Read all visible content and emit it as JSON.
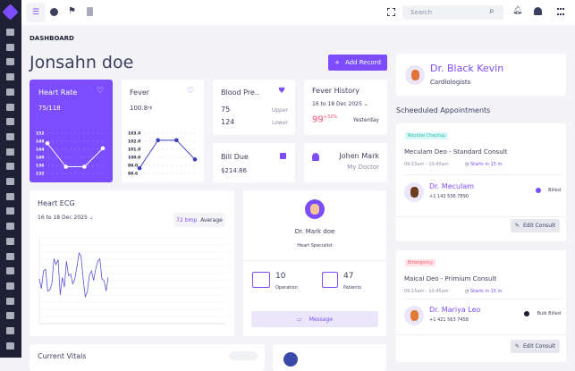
{
  "colors": {
    "accent": "#7c4dff",
    "sidebar": "#1e2033",
    "danger": "#ff4d6d"
  },
  "topbar": {
    "search_placeholder": "Search",
    "icons": [
      "menu-icon",
      "chat-icon",
      "flag-icon",
      "clipboard-icon",
      "fullscreen-icon",
      "search-icon",
      "bell-icon",
      "user-icon",
      "settings-icon"
    ]
  },
  "page": {
    "breadcrumb": "DASHBOARD",
    "title": "Jonsahn doe",
    "add_record": "Add Record"
  },
  "heart_rate": {
    "title": "Heart Rate",
    "value": "75/118",
    "chart_data": {
      "type": "line",
      "y_ticks": [
        152,
        148,
        144,
        140,
        136,
        132
      ],
      "values": [
        148,
        134,
        134,
        145
      ]
    }
  },
  "fever": {
    "title": "Fever",
    "value": "100.8",
    "unit": "°F",
    "chart_data": {
      "type": "line",
      "y_ticks": [
        "103.0",
        "102.0",
        "101.0",
        "100.0",
        "99.0",
        "98.6"
      ],
      "values": [
        99.2,
        102.4,
        102.4,
        100.2
      ]
    }
  },
  "blood_pressure": {
    "title": "Blood Pre..",
    "upper": "75",
    "upper_label": "Upper",
    "lower": "124",
    "lower_label": "Lower"
  },
  "fever_history": {
    "title": "Fever History",
    "range": "16 to 18 Dec 2025",
    "value": "99",
    "change": "+32%",
    "when": "Yesterday"
  },
  "bill": {
    "title": "Bill Due",
    "amount": "$214.86"
  },
  "my_doctor": {
    "name": "Johen Mark",
    "label": "My Doctor"
  },
  "ecg": {
    "title": "Heart ECG",
    "range": "16 to 18 Dec 2025",
    "bpm": "72 bmp",
    "bpm_label": "Average",
    "chart_data": {
      "type": "line",
      "values": [
        50,
        38,
        60,
        62,
        35,
        36,
        44,
        75,
        68,
        74,
        30,
        52,
        40,
        72,
        54,
        56,
        44,
        50,
        65,
        82,
        78,
        50,
        28,
        34,
        55,
        60,
        48,
        62,
        72,
        75,
        50,
        48,
        35,
        52
      ]
    }
  },
  "doctor_card": {
    "name": "Dr. Mark doe",
    "specialty": "Heart Specialist",
    "operations": "10",
    "operations_label": "Operation",
    "patients": "47",
    "patients_label": "Patients",
    "message": "Message"
  },
  "bottom": {
    "vitals_title": "Current Vitals"
  },
  "profile": {
    "name": "Dr. Black Kevin",
    "role": "Cardiologists"
  },
  "appointments": {
    "title": "Scheeduled Appointments",
    "items": [
      {
        "tag": "Routine Checkup",
        "tag_color": "#d9f7f5",
        "tag_text": "#2bbfb3",
        "title": "Meculam Deo - Standard Consult",
        "time": "09:15am - 10:45am",
        "starts": "Starts in 15 m",
        "doctor": "Dr. Meculam",
        "phone": "+1 142 536 7890",
        "status": "Billed",
        "status_color": "#7c4dff",
        "edit": "Edit Consult"
      },
      {
        "tag": "Emergency",
        "tag_color": "#ffe3e6",
        "tag_text": "#ff5a6e",
        "title": "Maical Deo - Primium Consult",
        "time": "09:15am - 10:45am",
        "starts": "Starts in 15 m",
        "doctor": "Dr. Mariya Leo",
        "phone": "+1 421 563 7458",
        "status": "Bulk Billed",
        "status_color": "#1e2033",
        "edit": "Edit Consult"
      }
    ]
  }
}
